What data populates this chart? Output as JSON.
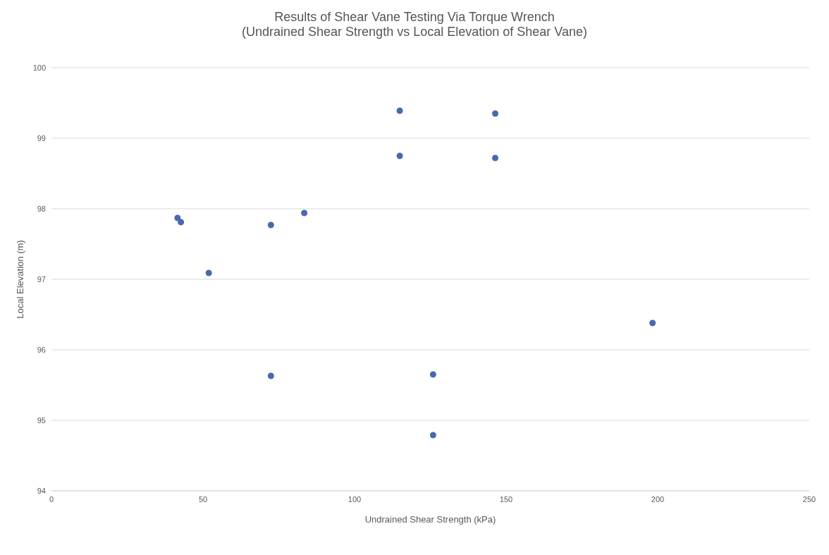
{
  "chart_data": {
    "type": "scatter",
    "title": "Results of Shear Vane Testing Via Torque Wrench",
    "subtitle": "(Undrained Shear Strength vs Local Elevation of Shear Vane)",
    "xlabel": "Undrained Shear Strength (kPa)",
    "ylabel": "Local Elevation (m)",
    "x": [
      41.6,
      42.7,
      51.9,
      72.4,
      83.4,
      72.4,
      114.9,
      114.9,
      125.9,
      125.9,
      146.4,
      146.4,
      198.3
    ],
    "series": [
      {
        "color": "#4a68b0",
        "values": [
          97.87,
          97.81,
          97.09,
          97.77,
          97.94,
          95.63,
          99.39,
          98.75,
          95.65,
          94.79,
          99.35,
          98.72,
          96.38
        ]
      }
    ],
    "xlim": [
      0,
      250
    ],
    "xticks": [
      0,
      50,
      100,
      150,
      200,
      250
    ],
    "ylim": [
      94,
      100
    ],
    "yticks": [
      94,
      95,
      96,
      97,
      98,
      99,
      100
    ],
    "grid": "y",
    "marker": "circle"
  }
}
